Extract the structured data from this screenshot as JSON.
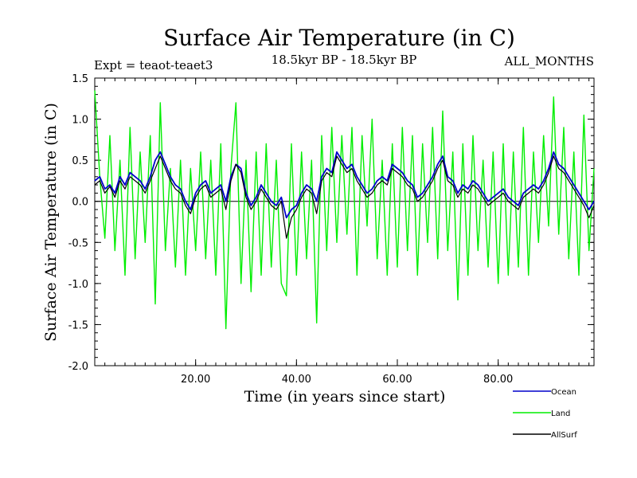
{
  "chart_data": {
    "type": "line",
    "title": "Surface Air Temperature (in C)",
    "subtitle_left": "Expt = teaot-teaet3",
    "subtitle_center": "18.5kyr BP - 18.5kyr BP",
    "subtitle_right": "ALL_MONTHS",
    "xlabel": "Time (in years since start)",
    "ylabel": "Surface Air Temperature (in C)",
    "xlim": [
      0,
      99
    ],
    "ylim": [
      -2.0,
      1.5
    ],
    "xticks": [
      20,
      40,
      60,
      80
    ],
    "xtick_labels": [
      "20.00",
      "40.00",
      "60.00",
      "80.00"
    ],
    "yticks": [
      -2.0,
      -1.5,
      -1.0,
      -0.5,
      0.0,
      0.5,
      1.0,
      1.5
    ],
    "ytick_labels": [
      "-2.0",
      "-1.5",
      "-1.0",
      "-0.5",
      "0.0",
      "0.5",
      "1.0",
      "1.5"
    ],
    "zero_line": true,
    "legend_position": "bottom-right",
    "series": [
      {
        "name": "Land",
        "color": "#00ee00",
        "x": [
          0,
          1,
          2,
          3,
          4,
          5,
          6,
          7,
          8,
          9,
          10,
          11,
          12,
          13,
          14,
          15,
          16,
          17,
          18,
          19,
          20,
          21,
          22,
          23,
          24,
          25,
          26,
          27,
          28,
          29,
          30,
          31,
          32,
          33,
          34,
          35,
          36,
          37,
          38,
          39,
          40,
          41,
          42,
          43,
          44,
          45,
          46,
          47,
          48,
          49,
          50,
          51,
          52,
          53,
          54,
          55,
          56,
          57,
          58,
          59,
          60,
          61,
          62,
          63,
          64,
          65,
          66,
          67,
          68,
          69,
          70,
          71,
          72,
          73,
          74,
          75,
          76,
          77,
          78,
          79,
          80,
          81,
          82,
          83,
          84,
          85,
          86,
          87,
          88,
          89,
          90,
          91,
          92,
          93,
          94,
          95,
          96,
          97,
          98,
          99
        ],
        "values": [
          1.35,
          0.3,
          -0.45,
          0.8,
          -0.6,
          0.5,
          -0.9,
          0.9,
          -0.7,
          0.6,
          -0.5,
          0.8,
          -1.25,
          1.2,
          -0.6,
          0.4,
          -0.8,
          0.5,
          -0.9,
          0.4,
          -0.6,
          0.6,
          -0.7,
          0.5,
          -0.9,
          0.7,
          -1.55,
          0.4,
          1.2,
          -1.0,
          0.5,
          -1.1,
          0.6,
          -0.9,
          0.7,
          -0.8,
          0.5,
          -1.0,
          -1.15,
          0.7,
          -0.9,
          0.6,
          -0.7,
          0.5,
          -1.48,
          0.8,
          -0.6,
          0.9,
          -0.5,
          0.8,
          -0.4,
          0.9,
          -0.9,
          0.8,
          -0.3,
          1.0,
          -0.7,
          0.5,
          -0.9,
          0.7,
          -0.8,
          0.9,
          -0.6,
          0.8,
          -0.9,
          0.7,
          -0.5,
          0.9,
          -0.7,
          1.1,
          -0.6,
          0.6,
          -1.2,
          0.7,
          -0.9,
          0.8,
          -0.6,
          0.5,
          -0.8,
          0.6,
          -1.0,
          0.7,
          -0.9,
          0.6,
          -0.8,
          0.9,
          -0.9,
          0.6,
          -0.5,
          0.8,
          -0.3,
          1.27,
          -0.4,
          0.9,
          -0.7,
          0.6,
          -0.9,
          1.05,
          -0.6,
          0.4
        ]
      },
      {
        "name": "Ocean",
        "color": "#0000cc",
        "x": [
          0,
          1,
          2,
          3,
          4,
          5,
          6,
          7,
          8,
          9,
          10,
          11,
          12,
          13,
          14,
          15,
          16,
          17,
          18,
          19,
          20,
          21,
          22,
          23,
          24,
          25,
          26,
          27,
          28,
          29,
          30,
          31,
          32,
          33,
          34,
          35,
          36,
          37,
          38,
          39,
          40,
          41,
          42,
          43,
          44,
          45,
          46,
          47,
          48,
          49,
          50,
          51,
          52,
          53,
          54,
          55,
          56,
          57,
          58,
          59,
          60,
          61,
          62,
          63,
          64,
          65,
          66,
          67,
          68,
          69,
          70,
          71,
          72,
          73,
          74,
          75,
          76,
          77,
          78,
          79,
          80,
          81,
          82,
          83,
          84,
          85,
          86,
          87,
          88,
          89,
          90,
          91,
          92,
          93,
          94,
          95,
          96,
          97,
          98,
          99
        ],
        "values": [
          0.25,
          0.3,
          0.15,
          0.2,
          0.1,
          0.3,
          0.2,
          0.35,
          0.3,
          0.25,
          0.15,
          0.3,
          0.5,
          0.6,
          0.45,
          0.3,
          0.2,
          0.15,
          0.0,
          -0.1,
          0.1,
          0.2,
          0.25,
          0.1,
          0.15,
          0.2,
          0.0,
          0.3,
          0.45,
          0.4,
          0.1,
          -0.05,
          0.05,
          0.2,
          0.1,
          0.0,
          -0.05,
          0.05,
          -0.2,
          -0.1,
          -0.05,
          0.1,
          0.2,
          0.15,
          0.0,
          0.3,
          0.4,
          0.35,
          0.6,
          0.5,
          0.4,
          0.45,
          0.3,
          0.2,
          0.1,
          0.15,
          0.25,
          0.3,
          0.25,
          0.45,
          0.4,
          0.35,
          0.25,
          0.2,
          0.05,
          0.1,
          0.2,
          0.3,
          0.45,
          0.55,
          0.3,
          0.25,
          0.1,
          0.2,
          0.15,
          0.25,
          0.2,
          0.1,
          0.0,
          0.05,
          0.1,
          0.15,
          0.05,
          0.0,
          -0.05,
          0.1,
          0.15,
          0.2,
          0.15,
          0.25,
          0.4,
          0.6,
          0.45,
          0.4,
          0.3,
          0.2,
          0.1,
          0.0,
          -0.1,
          0.0
        ]
      },
      {
        "name": "AllSurf",
        "color": "#000000",
        "x": [
          0,
          1,
          2,
          3,
          4,
          5,
          6,
          7,
          8,
          9,
          10,
          11,
          12,
          13,
          14,
          15,
          16,
          17,
          18,
          19,
          20,
          21,
          22,
          23,
          24,
          25,
          26,
          27,
          28,
          29,
          30,
          31,
          32,
          33,
          34,
          35,
          36,
          37,
          38,
          39,
          40,
          41,
          42,
          43,
          44,
          45,
          46,
          47,
          48,
          49,
          50,
          51,
          52,
          53,
          54,
          55,
          56,
          57,
          58,
          59,
          60,
          61,
          62,
          63,
          64,
          65,
          66,
          67,
          68,
          69,
          70,
          71,
          72,
          73,
          74,
          75,
          76,
          77,
          78,
          79,
          80,
          81,
          82,
          83,
          84,
          85,
          86,
          87,
          88,
          89,
          90,
          91,
          92,
          93,
          94,
          95,
          96,
          97,
          98,
          99
        ],
        "values": [
          0.2,
          0.25,
          0.1,
          0.18,
          0.05,
          0.25,
          0.15,
          0.3,
          0.25,
          0.2,
          0.1,
          0.25,
          0.4,
          0.55,
          0.4,
          0.25,
          0.15,
          0.1,
          -0.05,
          -0.15,
          0.05,
          0.15,
          0.2,
          0.05,
          0.1,
          0.15,
          -0.1,
          0.25,
          0.45,
          0.35,
          0.05,
          -0.1,
          0.0,
          0.15,
          0.05,
          -0.05,
          -0.1,
          0.0,
          -0.45,
          -0.2,
          -0.1,
          0.05,
          0.15,
          0.1,
          -0.15,
          0.25,
          0.35,
          0.3,
          0.55,
          0.45,
          0.35,
          0.4,
          0.25,
          0.15,
          0.05,
          0.1,
          0.2,
          0.25,
          0.2,
          0.4,
          0.35,
          0.3,
          0.2,
          0.15,
          0.0,
          0.05,
          0.15,
          0.25,
          0.4,
          0.5,
          0.25,
          0.2,
          0.05,
          0.15,
          0.1,
          0.2,
          0.15,
          0.05,
          -0.05,
          0.0,
          0.05,
          0.1,
          0.0,
          -0.05,
          -0.1,
          0.05,
          0.1,
          0.15,
          0.1,
          0.2,
          0.35,
          0.55,
          0.4,
          0.35,
          0.25,
          0.15,
          0.05,
          -0.05,
          -0.2,
          -0.05
        ]
      }
    ]
  }
}
